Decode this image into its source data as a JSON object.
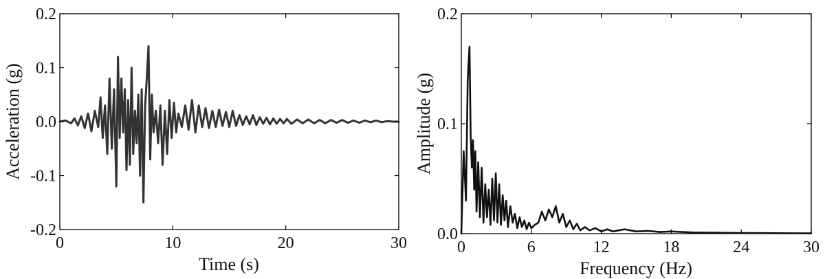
{
  "chart_data": [
    {
      "type": "line",
      "title": "",
      "xlabel": "Time (s)",
      "ylabel": "Acceleration (g)",
      "xlim": [
        0,
        30
      ],
      "ylim": [
        -0.2,
        0.2
      ],
      "xticks": [
        "0",
        "10",
        "20",
        "30"
      ],
      "yticks": [
        "-0.2",
        "-0.1",
        "0.0",
        "0.1",
        "0.2"
      ],
      "grid": false,
      "color": "#333333",
      "series": [
        {
          "x": [
            0,
            0.5,
            1.0,
            1.3,
            1.6,
            1.9,
            2.2,
            2.5,
            2.8,
            3.1,
            3.4,
            3.6,
            3.8,
            4.0,
            4.2,
            4.4,
            4.6,
            4.8,
            5.0,
            5.15,
            5.3,
            5.45,
            5.6,
            5.75,
            5.9,
            6.05,
            6.2,
            6.35,
            6.5,
            6.65,
            6.8,
            6.95,
            7.1,
            7.25,
            7.4,
            7.55,
            7.7,
            7.85,
            8.0,
            8.15,
            8.3,
            8.5,
            8.7,
            8.9,
            9.1,
            9.3,
            9.5,
            9.7,
            9.9,
            10.1,
            10.3,
            10.5,
            10.8,
            11.1,
            11.4,
            11.7,
            12.0,
            12.3,
            12.6,
            12.9,
            13.2,
            13.5,
            13.8,
            14.1,
            14.4,
            14.7,
            15.0,
            15.3,
            15.6,
            15.9,
            16.2,
            16.5,
            16.8,
            17.1,
            17.4,
            17.7,
            18.0,
            18.3,
            18.6,
            18.9,
            19.2,
            19.5,
            19.8,
            20.1,
            20.5,
            21.0,
            21.5,
            22.0,
            22.5,
            23.0,
            23.5,
            24.0,
            24.5,
            25.0,
            25.5,
            26.0,
            26.5,
            27.0,
            27.5,
            28.0,
            28.5,
            29.0,
            29.5,
            30.0
          ],
          "y": [
            0.0,
            0.002,
            -0.003,
            0.006,
            -0.007,
            0.01,
            -0.012,
            0.015,
            -0.018,
            0.02,
            -0.01,
            0.045,
            -0.03,
            0.03,
            -0.06,
            0.08,
            -0.05,
            0.06,
            -0.12,
            0.12,
            -0.03,
            0.08,
            -0.02,
            0.06,
            -0.09,
            0.04,
            -0.08,
            0.1,
            -0.06,
            0.02,
            -0.04,
            0.05,
            -0.1,
            0.06,
            -0.15,
            0.03,
            0.08,
            0.14,
            -0.07,
            0.05,
            -0.02,
            0.02,
            -0.04,
            0.03,
            -0.08,
            0.02,
            -0.06,
            0.04,
            -0.03,
            0.035,
            -0.02,
            0.015,
            -0.01,
            0.03,
            -0.015,
            0.04,
            -0.02,
            0.03,
            -0.01,
            0.025,
            -0.012,
            0.02,
            -0.01,
            0.022,
            -0.008,
            0.018,
            -0.01,
            0.02,
            -0.008,
            0.012,
            -0.006,
            0.01,
            -0.005,
            0.012,
            -0.006,
            0.008,
            -0.004,
            0.007,
            -0.005,
            0.006,
            -0.004,
            0.005,
            -0.003,
            0.005,
            -0.004,
            0.004,
            -0.003,
            0.004,
            -0.003,
            0.003,
            -0.003,
            0.003,
            -0.002,
            0.003,
            -0.002,
            0.002,
            -0.002,
            0.002,
            -0.001,
            0.002,
            -0.001,
            0.001,
            0.0,
            0.0
          ]
        }
      ]
    },
    {
      "type": "line",
      "title": "",
      "xlabel": "Frequency (Hz)",
      "ylabel": "Amplitude (g)",
      "xlim": [
        0,
        30
      ],
      "ylim": [
        0,
        0.2
      ],
      "xticks": [
        "0",
        "6",
        "12",
        "18",
        "24",
        "30"
      ],
      "yticks": [
        "0.0",
        "0.1",
        "0.2"
      ],
      "grid": false,
      "color": "#111111",
      "series": [
        {
          "x": [
            0,
            0.2,
            0.4,
            0.55,
            0.7,
            0.8,
            0.9,
            1.0,
            1.1,
            1.2,
            1.3,
            1.45,
            1.6,
            1.75,
            1.9,
            2.05,
            2.2,
            2.35,
            2.5,
            2.65,
            2.8,
            2.95,
            3.1,
            3.25,
            3.4,
            3.55,
            3.7,
            3.85,
            4.0,
            4.2,
            4.4,
            4.6,
            4.8,
            5.0,
            5.2,
            5.4,
            5.6,
            5.8,
            6.0,
            6.3,
            6.6,
            6.9,
            7.2,
            7.5,
            7.8,
            8.1,
            8.4,
            8.7,
            9.0,
            9.3,
            9.6,
            9.9,
            10.2,
            10.6,
            11.0,
            11.5,
            12.0,
            12.5,
            13.0,
            13.5,
            14.0,
            15.0,
            16.0,
            17.0,
            18.0,
            20.0,
            22.0,
            24.0,
            26.0,
            28.0,
            30.0
          ],
          "y": [
            0.0,
            0.075,
            0.03,
            0.14,
            0.17,
            0.09,
            0.06,
            0.085,
            0.04,
            0.075,
            0.02,
            0.065,
            0.015,
            0.06,
            0.01,
            0.045,
            0.015,
            0.04,
            0.008,
            0.05,
            0.012,
            0.055,
            0.01,
            0.045,
            0.008,
            0.035,
            0.012,
            0.03,
            0.006,
            0.025,
            0.01,
            0.018,
            0.005,
            0.015,
            0.006,
            0.012,
            0.004,
            0.01,
            0.005,
            0.008,
            0.01,
            0.02,
            0.012,
            0.022,
            0.015,
            0.025,
            0.01,
            0.018,
            0.006,
            0.012,
            0.004,
            0.009,
            0.003,
            0.006,
            0.003,
            0.005,
            0.002,
            0.004,
            0.002,
            0.003,
            0.004,
            0.002,
            0.0025,
            0.0015,
            0.002,
            0.001,
            0.0008,
            0.0006,
            0.0005,
            0.0004,
            0.0003
          ]
        }
      ]
    }
  ]
}
